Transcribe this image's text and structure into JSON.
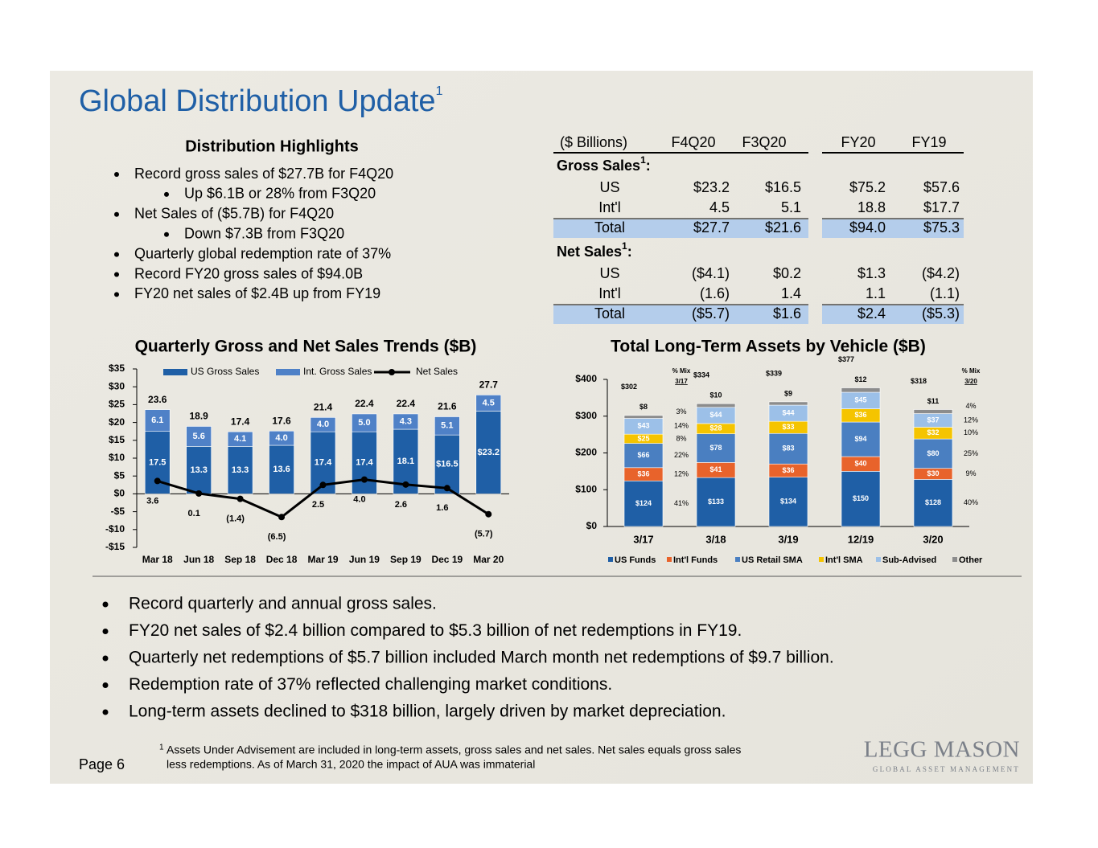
{
  "header": {
    "title": "Global Distribution Update",
    "title_sup": "1"
  },
  "highlights": {
    "title": "Distribution Highlights",
    "items": [
      {
        "text": "Record gross sales of $27.7B for F4Q20",
        "level": 1
      },
      {
        "text": "Up $6.1B or 28% from F3Q20",
        "level": 2
      },
      {
        "text": "Net Sales of ($5.7B) for F4Q20",
        "level": 1
      },
      {
        "text": "Down $7.3B from F3Q20",
        "level": 2
      },
      {
        "text": "Quarterly global redemption rate of 37%",
        "level": 1
      },
      {
        "text": "Record FY20 gross sales of $94.0B",
        "level": 1
      },
      {
        "text": "FY20 net sales of $2.4B up from FY19",
        "level": 1
      }
    ]
  },
  "table": {
    "columns": [
      "($ Billions)",
      "F4Q20",
      "F3Q20",
      "FY20",
      "FY19"
    ],
    "sections": [
      {
        "title": "Gross Sales",
        "title_sup": "1",
        "title_suffix": ":",
        "rows": [
          [
            "US",
            "$23.2",
            "$16.5",
            "$75.2",
            "$57.6"
          ],
          [
            "Int'l",
            "4.5",
            "5.1",
            "18.8",
            "$17.7"
          ],
          [
            "Total",
            "$27.7",
            "$21.6",
            "$94.0",
            "$75.3"
          ]
        ]
      },
      {
        "title": "Net Sales",
        "title_sup": "1",
        "title_suffix": ":",
        "rows": [
          [
            "US",
            "($4.1)",
            "$0.2",
            "$1.3",
            "($4.2)"
          ],
          [
            "Int'l",
            "(1.6)",
            "1.4",
            "1.1",
            "(1.1)"
          ],
          [
            "Total",
            "($5.7)",
            "$1.6",
            "$2.4",
            "($5.3)"
          ]
        ]
      }
    ]
  },
  "chart_data": [
    {
      "type": "bar",
      "stacked": true,
      "title": "Quarterly Gross and Net Sales Trends ($B)",
      "categories": [
        "Mar 18",
        "Jun 18",
        "Sep 18",
        "Dec 18",
        "Mar 19",
        "Jun 19",
        "Sep 19",
        "Dec 19",
        "Mar 20"
      ],
      "series": [
        {
          "name": "US Gross Sales",
          "color": "#1f5fa6",
          "values": [
            17.5,
            13.3,
            13.3,
            13.6,
            17.4,
            17.4,
            18.1,
            16.5,
            23.2
          ],
          "value_labels": [
            "17.5",
            "13.3",
            "13.3",
            "13.6",
            "17.4",
            "17.4",
            "18.1",
            "$16.5",
            "$23.2"
          ]
        },
        {
          "name": "Int. Gross Sales",
          "color": "#4f81c7",
          "values": [
            6.1,
            5.6,
            4.1,
            4.0,
            4.0,
            5.0,
            4.3,
            5.1,
            4.5
          ],
          "value_labels": [
            "6.1",
            "5.6",
            "4.1",
            "4.0",
            "4.0",
            "5.0",
            "4.3",
            "5.1",
            "4.5"
          ]
        },
        {
          "name": "Net Sales",
          "type": "line",
          "color": "#000000",
          "values": [
            3.6,
            0.1,
            -1.4,
            -6.5,
            2.5,
            4.0,
            2.6,
            1.6,
            -5.7
          ],
          "value_labels": [
            "3.6",
            "0.1",
            "(1.4)",
            "(6.5)",
            "2.5",
            "4.0",
            "2.6",
            "1.6",
            "(5.7)"
          ]
        }
      ],
      "total_labels": [
        "23.6",
        "18.9",
        "17.4",
        "17.6",
        "21.4",
        "22.4",
        "22.4",
        "21.6",
        "27.7"
      ],
      "ylim": [
        -15,
        35
      ],
      "yticks": [
        {
          "value": 35,
          "label": "$35"
        },
        {
          "value": 30,
          "label": "$30"
        },
        {
          "value": 25,
          "label": "$25"
        },
        {
          "value": 20,
          "label": "$20"
        },
        {
          "value": 15,
          "label": "$15"
        },
        {
          "value": 10,
          "label": "$10"
        },
        {
          "value": 5,
          "label": "$5"
        },
        {
          "value": 0,
          "label": "$0"
        },
        {
          "value": -5,
          "label": "-$5"
        },
        {
          "value": -10,
          "label": "-$10"
        },
        {
          "value": -15,
          "label": "-$15"
        }
      ]
    },
    {
      "type": "bar",
      "stacked": true,
      "title": "Total Long-Term Assets by Vehicle ($B)",
      "categories": [
        "3/17",
        "3/18",
        "3/19",
        "12/19",
        "3/20"
      ],
      "series": [
        {
          "name": "US Funds",
          "color": "#1f5fa6",
          "values": [
            124,
            133,
            134,
            150,
            128
          ],
          "value_labels": [
            "$124",
            "$133",
            "$134",
            "$150",
            "$128"
          ]
        },
        {
          "name": "Int'l Funds",
          "color": "#e8632b",
          "values": [
            36,
            41,
            36,
            40,
            30
          ],
          "value_labels": [
            "$36",
            "$41",
            "$36",
            "$40",
            "$30"
          ]
        },
        {
          "name": "US Retail SMA",
          "color": "#4a7fc1",
          "values": [
            66,
            78,
            83,
            94,
            80
          ],
          "value_labels": [
            "$66",
            "$78",
            "$83",
            "$94",
            "$80"
          ]
        },
        {
          "name": "Int'l SMA",
          "color": "#f5c400",
          "values": [
            25,
            28,
            33,
            36,
            32
          ],
          "value_labels": [
            "$25",
            "$28",
            "$33",
            "$36",
            "$32"
          ]
        },
        {
          "name": "Sub-Advised",
          "color": "#9cc0e8",
          "values": [
            43,
            44,
            44,
            45,
            37
          ],
          "value_labels": [
            "$43",
            "$44",
            "$44",
            "$45",
            "$37"
          ]
        },
        {
          "name": "Other",
          "color": "#8c8c8c",
          "values": [
            8,
            10,
            9,
            12,
            11
          ],
          "value_labels": [
            "$8",
            "$10",
            "$9",
            "$12",
            "$11"
          ]
        }
      ],
      "total_labels": [
        "$302",
        "$334",
        "$339",
        "$377",
        "$318"
      ],
      "mix": [
        {
          "title": "% Mix",
          "date": "3/17",
          "labels": [
            "41%",
            "12%",
            "22%",
            "8%",
            "14%",
            "3%"
          ]
        },
        {
          "title": "% Mix",
          "date": "3/20",
          "labels": [
            "40%",
            "9%",
            "25%",
            "10%",
            "12%",
            "4%"
          ]
        }
      ],
      "ylim": [
        0,
        400
      ],
      "yticks": [
        {
          "value": 400,
          "label": "$400"
        },
        {
          "value": 300,
          "label": "$300"
        },
        {
          "value": 200,
          "label": "$200"
        },
        {
          "value": 100,
          "label": "$100"
        },
        {
          "value": 0,
          "label": "$0"
        }
      ]
    }
  ],
  "bullets": [
    "Record quarterly and annual gross sales.",
    "FY20 net sales of $2.4 billion compared to $5.3 billion of net redemptions in FY19.",
    "Quarterly net redemptions of $5.7 billion included March month net redemptions of $9.7 billion.",
    "Redemption rate of 37% reflected challenging market conditions.",
    "Long-term assets declined to $318 billion, largely driven by market depreciation."
  ],
  "footnote": {
    "mark": "1",
    "lines": [
      "Assets Under Advisement are included in long-term assets, gross sales and net sales. Net sales equals gross sales",
      "less redemptions. As of March 31, 2020 the impact of AUA was immaterial"
    ]
  },
  "page": "Page 6",
  "logo": {
    "name": "LEGG MASON",
    "tagline": "GLOBAL ASSET MANAGEMENT"
  }
}
